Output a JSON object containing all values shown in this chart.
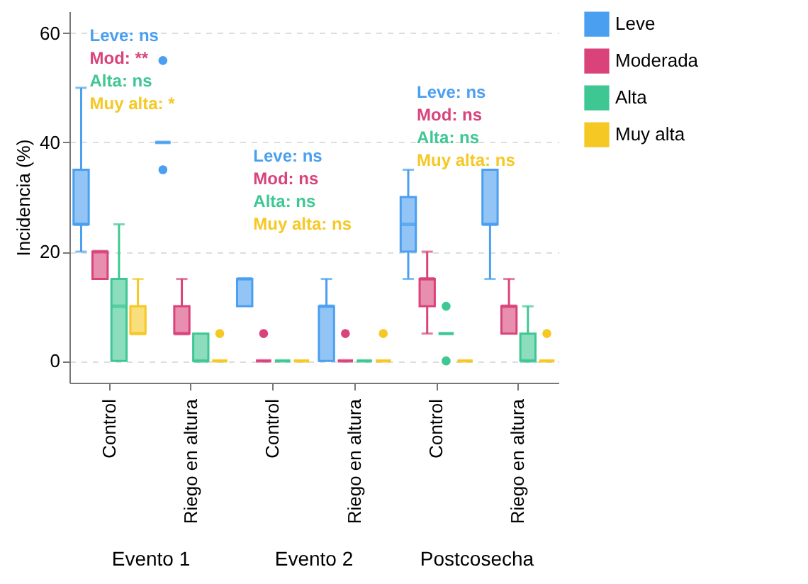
{
  "chart_data": {
    "type": "box",
    "ylabel": "Incidencia (%)",
    "categories": [
      "Control",
      "Riego en altura",
      "Control",
      "Riego en altura",
      "Control",
      "Riego en altura"
    ],
    "ylim": [
      -4,
      64
    ],
    "yticks": [
      0,
      20,
      40,
      60
    ],
    "grid": "y",
    "legend": "right",
    "series": [
      {
        "name": "Leve",
        "color": "#4a9ff0",
        "boxes": [
          {
            "low": 20,
            "q1": 25,
            "median": 25,
            "q3": 35,
            "high": 50
          },
          {
            "low": 40,
            "q1": 40,
            "median": 40,
            "q3": 40,
            "high": 40,
            "outliers": [
              55,
              35
            ]
          },
          {
            "low": 10,
            "q1": 10,
            "median": 15,
            "q3": 15,
            "high": 15
          },
          {
            "low": 0,
            "q1": 0,
            "median": 10,
            "q3": 10,
            "high": 15
          },
          {
            "low": 15,
            "q1": 20,
            "median": 25,
            "q3": 30,
            "high": 35
          },
          {
            "low": 15,
            "q1": 25,
            "median": 25,
            "q3": 35,
            "high": 35
          }
        ]
      },
      {
        "name": "Moderada",
        "color": "#d9437a",
        "boxes": [
          {
            "low": 15,
            "q1": 15,
            "median": 20,
            "q3": 20,
            "high": 20
          },
          {
            "low": 5,
            "q1": 5,
            "median": 5,
            "q3": 10,
            "high": 15
          },
          {
            "low": 0,
            "q1": 0,
            "median": 0,
            "q3": 0,
            "high": 0,
            "outliers": [
              5
            ]
          },
          {
            "low": 0,
            "q1": 0,
            "median": 0,
            "q3": 0,
            "high": 0,
            "outliers": [
              5
            ]
          },
          {
            "low": 5,
            "q1": 10,
            "median": 15,
            "q3": 15,
            "high": 20
          },
          {
            "low": 5,
            "q1": 5,
            "median": 10,
            "q3": 10,
            "high": 15
          }
        ]
      },
      {
        "name": "Alta",
        "color": "#3fc793",
        "boxes": [
          {
            "low": 0,
            "q1": 0,
            "median": 10,
            "q3": 15,
            "high": 25
          },
          {
            "low": 0,
            "q1": 0,
            "median": 0,
            "q3": 5,
            "high": 5
          },
          {
            "low": 0,
            "q1": 0,
            "median": 0,
            "q3": 0,
            "high": 0
          },
          {
            "low": 0,
            "q1": 0,
            "median": 0,
            "q3": 0,
            "high": 0
          },
          {
            "low": 5,
            "q1": 5,
            "median": 5,
            "q3": 5,
            "high": 5,
            "outliers": [
              10,
              0
            ]
          },
          {
            "low": 0,
            "q1": 0,
            "median": 0,
            "q3": 5,
            "high": 10
          }
        ]
      },
      {
        "name": "Muy alta",
        "color": "#f5c824",
        "boxes": [
          {
            "low": 5,
            "q1": 5,
            "median": 5,
            "q3": 10,
            "high": 15
          },
          {
            "low": 0,
            "q1": 0,
            "median": 0,
            "q3": 0,
            "high": 0,
            "outliers": [
              5
            ]
          },
          {
            "low": 0,
            "q1": 0,
            "median": 0,
            "q3": 0,
            "high": 0
          },
          {
            "low": 0,
            "q1": 0,
            "median": 0,
            "q3": 0,
            "high": 0,
            "outliers": [
              5
            ]
          },
          {
            "low": 0,
            "q1": 0,
            "median": 0,
            "q3": 0,
            "high": 0
          },
          {
            "low": 0,
            "q1": 0,
            "median": 0,
            "q3": 0,
            "high": 0,
            "outliers": [
              5
            ]
          }
        ]
      }
    ],
    "annotations": [
      "Leve: ns",
      "Mod: **",
      "Alta: ns",
      "Muy alta: *",
      "Leve: ns",
      "Mod: ns",
      "Alta: ns",
      "Muy alta: ns",
      "Leve: ns",
      "Mod: ns",
      "Alta: ns",
      "Muy alta: ns",
      "Evento 1",
      "Evento 2",
      "Postcosecha"
    ]
  }
}
